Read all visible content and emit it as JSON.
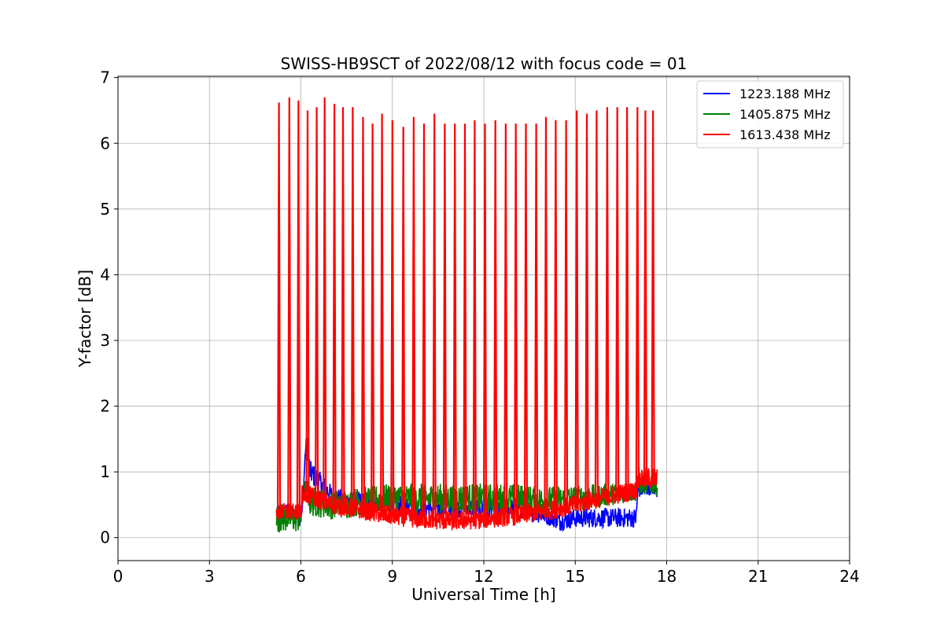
{
  "chart_data": {
    "type": "line",
    "title": "SWISS-HB9SCT of 2022/08/12 with focus code = 01",
    "xlabel": "Universal Time [h]",
    "ylabel": "Y-factor [dB]",
    "xlim": [
      0,
      24
    ],
    "ylim": [
      -0.35,
      7.02
    ],
    "xticks": [
      "0",
      "3",
      "6",
      "9",
      "12",
      "15",
      "18",
      "21",
      "24"
    ],
    "yticks": [
      "0",
      "1",
      "2",
      "3",
      "4",
      "5",
      "6",
      "7"
    ],
    "grid": true,
    "legend_position": "top-right",
    "series": [
      {
        "name": "1223.188 MHz",
        "color": "#0000ff",
        "baseline_x": [
          5.2,
          6.0,
          6.05,
          6.15,
          6.2,
          6.3,
          6.5,
          7.0,
          7.5,
          8.0,
          9.0,
          10.0,
          11.0,
          12.0,
          13.0,
          14.0,
          14.3,
          14.5,
          15.0,
          15.5,
          16.0,
          16.5,
          17.0,
          17.05,
          17.5,
          17.7
        ],
        "baseline_y": [
          0.35,
          0.35,
          0.4,
          1.35,
          1.45,
          1.0,
          0.9,
          0.65,
          0.55,
          0.55,
          0.5,
          0.45,
          0.45,
          0.45,
          0.45,
          0.35,
          0.3,
          0.25,
          0.3,
          0.3,
          0.3,
          0.3,
          0.3,
          0.7,
          0.75,
          0.7
        ],
        "spread": [
          0.35,
          0.35,
          0.3,
          0.25,
          0.25,
          0.35,
          0.35,
          0.3,
          0.3,
          0.3,
          0.3,
          0.3,
          0.3,
          0.3,
          0.3,
          0.3,
          0.3,
          0.3,
          0.3,
          0.3,
          0.3,
          0.3,
          0.3,
          0.2,
          0.2,
          0.2
        ]
      },
      {
        "name": "1405.875 MHz",
        "color": "#008000",
        "baseline_x": [
          5.2,
          6.0,
          6.05,
          6.2,
          6.3,
          7.0,
          8.0,
          9.0,
          10.0,
          11.0,
          12.0,
          13.0,
          14.0,
          15.0,
          16.0,
          17.0,
          17.05,
          17.7
        ],
        "baseline_y": [
          0.3,
          0.3,
          0.7,
          0.75,
          0.55,
          0.5,
          0.55,
          0.6,
          0.6,
          0.6,
          0.6,
          0.6,
          0.55,
          0.6,
          0.65,
          0.7,
          0.8,
          0.8
        ],
        "spread": [
          0.45,
          0.45,
          0.3,
          0.3,
          0.45,
          0.45,
          0.45,
          0.45,
          0.45,
          0.45,
          0.45,
          0.45,
          0.45,
          0.4,
          0.35,
          0.3,
          0.3,
          0.3
        ]
      },
      {
        "name": "1613.438 MHz",
        "color": "#ff0000",
        "baseline_x": [
          5.2,
          6.0,
          6.05,
          6.2,
          7.0,
          8.0,
          9.0,
          10.0,
          11.0,
          12.0,
          13.0,
          14.0,
          15.0,
          16.0,
          17.0,
          17.05,
          17.7
        ],
        "baseline_y": [
          0.4,
          0.4,
          0.65,
          0.65,
          0.5,
          0.42,
          0.33,
          0.28,
          0.25,
          0.28,
          0.33,
          0.4,
          0.5,
          0.62,
          0.72,
          0.9,
          0.9
        ],
        "spread": [
          0.25,
          0.25,
          0.3,
          0.3,
          0.3,
          0.3,
          0.3,
          0.3,
          0.3,
          0.3,
          0.3,
          0.3,
          0.3,
          0.3,
          0.3,
          0.35,
          0.35
        ],
        "spike_x": [
          5.28,
          5.62,
          5.92,
          6.22,
          6.52,
          6.78,
          7.1,
          7.38,
          7.7,
          8.04,
          8.35,
          8.66,
          9.0,
          9.36,
          9.7,
          10.04,
          10.38,
          10.72,
          11.05,
          11.38,
          11.7,
          12.04,
          12.38,
          12.72,
          13.05,
          13.38,
          13.72,
          14.04,
          14.36,
          14.7,
          15.05,
          15.38,
          15.7,
          16.05,
          16.38,
          16.7,
          17.04,
          17.3,
          17.55
        ],
        "spike_y": [
          6.62,
          6.7,
          6.65,
          6.5,
          6.55,
          6.7,
          6.6,
          6.55,
          6.55,
          6.4,
          6.3,
          6.45,
          6.35,
          6.25,
          6.4,
          6.3,
          6.45,
          6.3,
          6.3,
          6.3,
          6.35,
          6.3,
          6.35,
          6.3,
          6.3,
          6.3,
          6.3,
          6.4,
          6.35,
          6.35,
          6.5,
          6.45,
          6.5,
          6.55,
          6.55,
          6.55,
          6.55,
          6.5,
          6.5
        ]
      }
    ]
  }
}
